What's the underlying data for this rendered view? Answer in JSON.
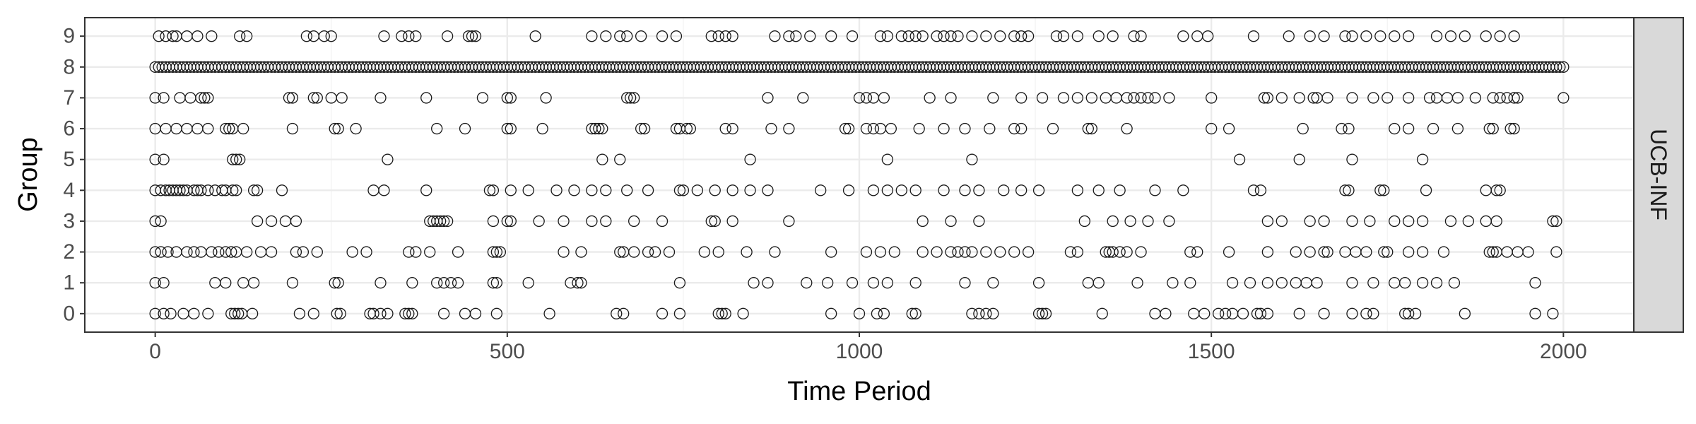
{
  "chart_data": {
    "type": "scatter",
    "title": "",
    "xlabel": "Time Period",
    "ylabel": "Group",
    "facet_label": "UCB-INF",
    "xlim": [
      -100,
      2100
    ],
    "ylim": [
      -0.6,
      9.6
    ],
    "x_ticks": [
      0,
      500,
      1000,
      1500,
      2000
    ],
    "y_ticks": [
      0,
      1,
      2,
      3,
      4,
      5,
      6,
      7,
      8,
      9
    ],
    "grid": true,
    "marker": "open-circle",
    "series": [
      {
        "values": [
          {
            "group": 0,
            "x": [
              0,
              12,
              22,
              40,
              55,
              75,
              108,
              113,
              118,
              123,
              138,
              205,
              225,
              258,
              263,
              305,
              310,
              320,
              330,
              355,
              360,
              365,
              410,
              440,
              455,
              485,
              560,
              655,
              665,
              720,
              745,
              800,
              805,
              810,
              835,
              960,
              1000,
              1025,
              1035,
              1075,
              1080,
              1160,
              1170,
              1180,
              1190,
              1255,
              1260,
              1265,
              1345,
              1420,
              1435,
              1475,
              1490,
              1510,
              1520,
              1530,
              1545,
              1565,
              1570,
              1580,
              1625,
              1660,
              1700,
              1720,
              1730,
              1775,
              1780,
              1790,
              1860,
              1960,
              1985
            ]
          },
          {
            "group": 1,
            "x": [
              0,
              12,
              85,
              100,
              125,
              140,
              195,
              255,
              260,
              320,
              365,
              400,
              410,
              420,
              430,
              480,
              485,
              530,
              590,
              600,
              605,
              745,
              850,
              870,
              925,
              955,
              990,
              1020,
              1040,
              1080,
              1150,
              1190,
              1255,
              1325,
              1340,
              1395,
              1445,
              1470,
              1530,
              1555,
              1580,
              1600,
              1620,
              1635,
              1650,
              1700,
              1730,
              1760,
              1775,
              1800,
              1820,
              1845,
              1960
            ]
          },
          {
            "group": 2,
            "x": [
              0,
              8,
              18,
              30,
              45,
              55,
              65,
              80,
              90,
              100,
              108,
              115,
              130,
              150,
              165,
              200,
              210,
              230,
              280,
              300,
              360,
              370,
              390,
              430,
              480,
              485,
              490,
              580,
              605,
              660,
              665,
              680,
              700,
              710,
              730,
              780,
              800,
              840,
              880,
              960,
              1010,
              1030,
              1050,
              1090,
              1110,
              1130,
              1140,
              1150,
              1160,
              1180,
              1200,
              1220,
              1240,
              1300,
              1310,
              1350,
              1355,
              1360,
              1370,
              1380,
              1400,
              1470,
              1480,
              1525,
              1580,
              1620,
              1640,
              1660,
              1665,
              1690,
              1705,
              1720,
              1745,
              1750,
              1780,
              1800,
              1830,
              1895,
              1900,
              1905,
              1920,
              1935,
              1950,
              1990
            ]
          },
          {
            "group": 3,
            "x": [
              0,
              8,
              145,
              165,
              185,
              200,
              390,
              395,
              400,
              405,
              410,
              415,
              480,
              500,
              505,
              545,
              580,
              620,
              640,
              680,
              720,
              790,
              795,
              820,
              900,
              1090,
              1130,
              1170,
              1320,
              1360,
              1385,
              1410,
              1440,
              1580,
              1600,
              1640,
              1660,
              1700,
              1725,
              1760,
              1780,
              1800,
              1840,
              1865,
              1890,
              1905,
              1985,
              1990
            ]
          },
          {
            "group": 4,
            "x": [
              0,
              8,
              15,
              20,
              25,
              30,
              35,
              40,
              45,
              55,
              60,
              65,
              75,
              85,
              95,
              100,
              110,
              115,
              140,
              145,
              180,
              310,
              325,
              385,
              475,
              480,
              505,
              530,
              570,
              595,
              620,
              640,
              670,
              700,
              745,
              750,
              770,
              795,
              820,
              845,
              870,
              945,
              985,
              1020,
              1040,
              1060,
              1080,
              1120,
              1150,
              1170,
              1205,
              1230,
              1255,
              1310,
              1340,
              1370,
              1420,
              1460,
              1560,
              1570,
              1690,
              1695,
              1740,
              1745,
              1805,
              1890,
              1905,
              1910
            ]
          },
          {
            "group": 5,
            "x": [
              0,
              12,
              110,
              115,
              120,
              330,
              635,
              660,
              845,
              1040,
              1160,
              1540,
              1625,
              1700,
              1800
            ]
          },
          {
            "group": 6,
            "x": [
              0,
              15,
              30,
              45,
              60,
              75,
              100,
              105,
              110,
              125,
              195,
              255,
              260,
              285,
              400,
              440,
              500,
              505,
              550,
              620,
              625,
              630,
              635,
              690,
              695,
              740,
              745,
              755,
              760,
              810,
              820,
              875,
              900,
              980,
              985,
              1010,
              1020,
              1030,
              1045,
              1085,
              1120,
              1150,
              1185,
              1220,
              1230,
              1275,
              1325,
              1330,
              1380,
              1500,
              1525,
              1630,
              1685,
              1695,
              1760,
              1780,
              1815,
              1850,
              1895,
              1900,
              1925,
              1930
            ]
          },
          {
            "group": 7,
            "x": [
              0,
              12,
              35,
              50,
              65,
              70,
              75,
              190,
              195,
              225,
              230,
              250,
              265,
              320,
              385,
              465,
              500,
              505,
              555,
              670,
              675,
              680,
              870,
              920,
              1000,
              1010,
              1020,
              1035,
              1100,
              1130,
              1190,
              1230,
              1260,
              1290,
              1310,
              1330,
              1350,
              1365,
              1380,
              1390,
              1400,
              1410,
              1420,
              1440,
              1500,
              1575,
              1580,
              1600,
              1625,
              1645,
              1650,
              1665,
              1700,
              1730,
              1750,
              1780,
              1810,
              1820,
              1835,
              1850,
              1875,
              1900,
              1910,
              1920,
              1930,
              1935,
              2000
            ]
          },
          {
            "group": 8,
            "x": [
              0,
              5,
              10,
              15,
              20,
              25,
              30,
              35,
              40,
              45,
              50,
              55,
              60,
              65,
              70,
              75,
              80,
              85,
              90,
              95,
              100,
              105,
              110,
              115,
              120,
              125,
              130,
              135,
              140,
              145,
              150,
              155,
              160,
              165,
              170,
              175,
              180,
              185,
              190,
              195,
              200,
              205,
              210,
              215,
              220,
              225,
              230,
              235,
              240,
              245,
              250,
              255,
              260,
              265,
              270,
              275,
              280,
              285,
              290,
              295,
              300,
              305,
              310,
              315,
              320,
              325,
              330,
              335,
              340,
              345,
              350,
              355,
              360,
              365,
              370,
              375,
              380,
              385,
              390,
              395,
              400,
              405,
              410,
              415,
              420,
              425,
              430,
              435,
              440,
              445,
              450,
              455,
              460,
              465,
              470,
              475,
              480,
              485,
              490,
              495,
              500,
              505,
              510,
              515,
              520,
              525,
              530,
              535,
              540,
              545,
              550,
              555,
              560,
              565,
              570,
              575,
              580,
              585,
              590,
              595,
              600,
              605,
              610,
              615,
              620,
              625,
              630,
              635,
              640,
              645,
              650,
              655,
              660,
              665,
              670,
              675,
              680,
              685,
              690,
              695,
              700,
              705,
              710,
              715,
              720,
              725,
              730,
              735,
              740,
              745,
              750,
              755,
              760,
              765,
              770,
              775,
              780,
              785,
              790,
              795,
              800,
              805,
              810,
              815,
              820,
              825,
              830,
              835,
              840,
              845,
              850,
              855,
              860,
              865,
              870,
              875,
              880,
              885,
              890,
              895,
              900,
              905,
              910,
              915,
              920,
              925,
              930,
              935,
              940,
              945,
              950,
              955,
              960,
              965,
              970,
              975,
              980,
              985,
              990,
              995,
              1000,
              1005,
              1010,
              1015,
              1020,
              1025,
              1030,
              1035,
              1040,
              1045,
              1050,
              1055,
              1060,
              1065,
              1070,
              1075,
              1080,
              1085,
              1090,
              1095,
              1100,
              1105,
              1110,
              1115,
              1120,
              1125,
              1130,
              1135,
              1140,
              1145,
              1150,
              1155,
              1160,
              1165,
              1170,
              1175,
              1180,
              1185,
              1190,
              1195,
              1200,
              1205,
              1210,
              1215,
              1220,
              1225,
              1230,
              1235,
              1240,
              1245,
              1250,
              1255,
              1260,
              1265,
              1270,
              1275,
              1280,
              1285,
              1290,
              1295,
              1300,
              1305,
              1310,
              1315,
              1320,
              1325,
              1330,
              1335,
              1340,
              1345,
              1350,
              1355,
              1360,
              1365,
              1370,
              1375,
              1380,
              1385,
              1390,
              1395,
              1400,
              1405,
              1410,
              1415,
              1420,
              1425,
              1430,
              1435,
              1440,
              1445,
              1450,
              1455,
              1460,
              1465,
              1470,
              1475,
              1480,
              1485,
              1490,
              1495,
              1500,
              1505,
              1510,
              1515,
              1520,
              1525,
              1530,
              1535,
              1540,
              1545,
              1550,
              1555,
              1560,
              1565,
              1570,
              1575,
              1580,
              1585,
              1590,
              1595,
              1600,
              1605,
              1610,
              1615,
              1620,
              1625,
              1630,
              1635,
              1640,
              1645,
              1650,
              1655,
              1660,
              1665,
              1670,
              1675,
              1680,
              1685,
              1690,
              1695,
              1700,
              1705,
              1710,
              1715,
              1720,
              1725,
              1730,
              1735,
              1740,
              1745,
              1750,
              1755,
              1760,
              1765,
              1770,
              1775,
              1780,
              1785,
              1790,
              1795,
              1800,
              1805,
              1810,
              1815,
              1820,
              1825,
              1830,
              1835,
              1840,
              1845,
              1850,
              1855,
              1860,
              1865,
              1870,
              1875,
              1880,
              1885,
              1890,
              1895,
              1900,
              1905,
              1910,
              1915,
              1920,
              1925,
              1930,
              1935,
              1940,
              1945,
              1950,
              1955,
              1960,
              1965,
              1970,
              1975,
              1980,
              1985,
              1990,
              1995,
              2000
            ]
          },
          {
            "group": 9,
            "x": [
              5,
              15,
              25,
              30,
              45,
              60,
              80,
              120,
              130,
              215,
              225,
              240,
              250,
              325,
              350,
              360,
              370,
              415,
              445,
              450,
              455,
              540,
              620,
              640,
              660,
              670,
              690,
              720,
              740,
              790,
              800,
              810,
              820,
              880,
              900,
              910,
              930,
              960,
              990,
              1030,
              1040,
              1060,
              1070,
              1080,
              1090,
              1110,
              1120,
              1130,
              1140,
              1160,
              1180,
              1200,
              1220,
              1230,
              1240,
              1280,
              1290,
              1310,
              1340,
              1360,
              1390,
              1400,
              1460,
              1480,
              1495,
              1560,
              1610,
              1640,
              1660,
              1690,
              1700,
              1720,
              1740,
              1760,
              1780,
              1820,
              1840,
              1860,
              1890,
              1910,
              1930
            ]
          }
        ]
      }
    ]
  }
}
